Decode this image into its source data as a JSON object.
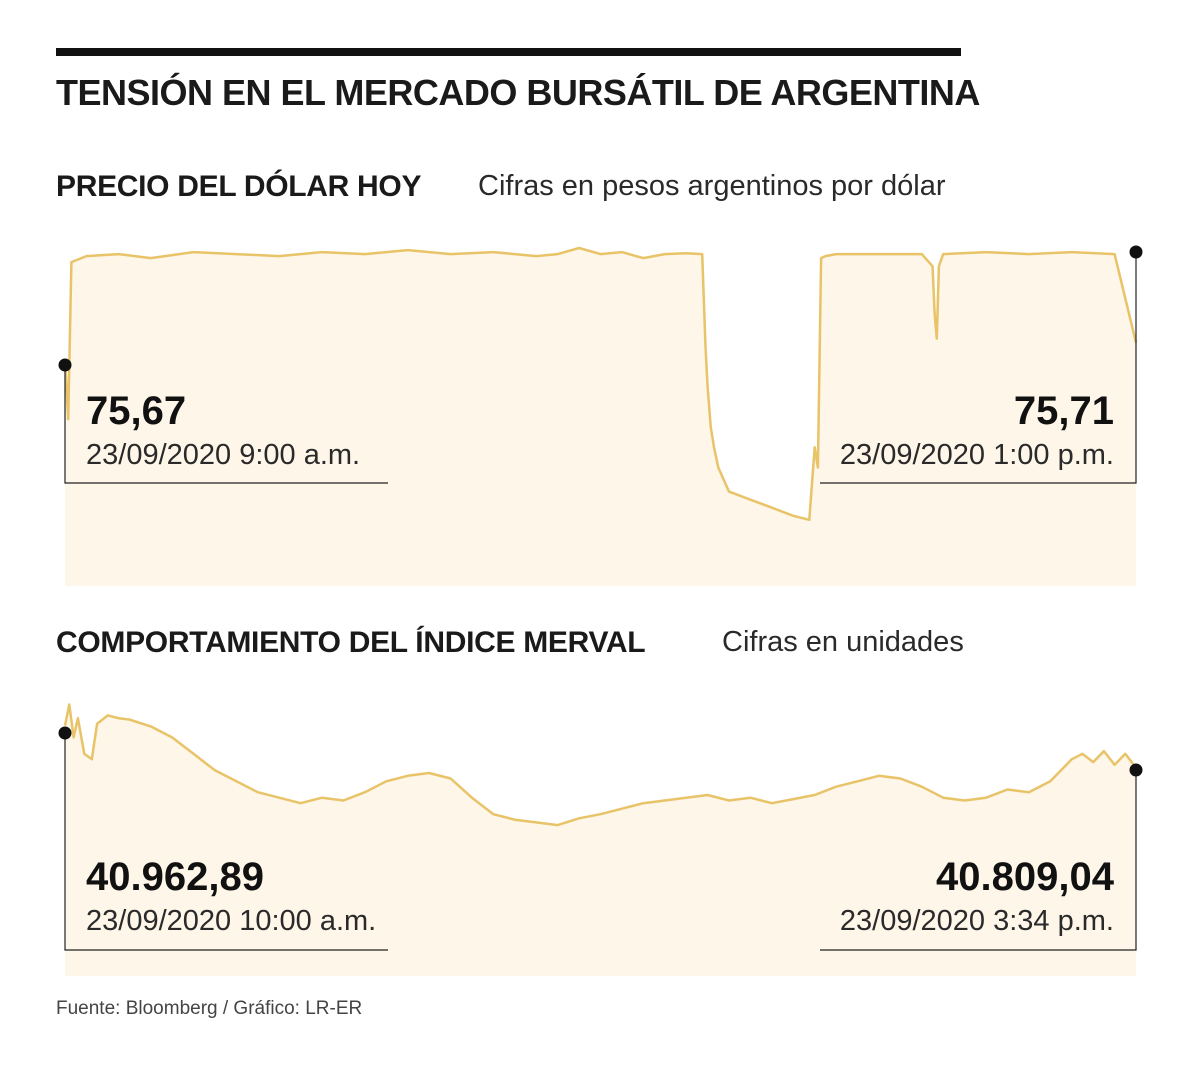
{
  "title": "TENSIÓN EN EL MERCADO BURSÁTIL DE ARGENTINA",
  "source": "Fuente: Bloomberg / Gráfico: LR-ER",
  "colors": {
    "line": "#e8c368",
    "fill": "#fdf6e9",
    "ink": "#111111"
  },
  "chart_data": [
    {
      "type": "area",
      "title": "PRECIO DEL DÓLAR HOY",
      "subtitle": "Cifras en pesos argentinos por dólar",
      "start": {
        "value": "75,67",
        "label": "23/09/2020 9:00 a.m."
      },
      "end": {
        "value": "75,71",
        "label": "23/09/2020 1:00 p.m."
      },
      "xlim": [
        0,
        100
      ],
      "ylim": [
        75.2,
        75.96
      ],
      "x": [
        0,
        0.3,
        0.6,
        2,
        5,
        8,
        12,
        16,
        20,
        24,
        28,
        32,
        36,
        40,
        44,
        46,
        48,
        50,
        52,
        54,
        56,
        58,
        59.5,
        59.8,
        60,
        60.3,
        60.6,
        61,
        62,
        64,
        66,
        68,
        69.5,
        70,
        70.3,
        70.6,
        71,
        72,
        76,
        80,
        81,
        81.2,
        81.4,
        81.6,
        82,
        86,
        90,
        94,
        98,
        100
      ],
      "values": [
        75.67,
        75.52,
        75.91,
        75.925,
        75.93,
        75.92,
        75.935,
        75.93,
        75.925,
        75.935,
        75.93,
        75.94,
        75.93,
        75.935,
        75.925,
        75.93,
        75.945,
        75.93,
        75.935,
        75.92,
        75.93,
        75.932,
        75.93,
        75.7,
        75.6,
        75.5,
        75.45,
        75.4,
        75.34,
        75.32,
        75.3,
        75.28,
        75.27,
        75.45,
        75.4,
        75.92,
        75.925,
        75.93,
        75.93,
        75.93,
        75.9,
        75.78,
        75.72,
        75.9,
        75.93,
        75.935,
        75.93,
        75.935,
        75.93,
        75.71
      ]
    },
    {
      "type": "area",
      "title": "COMPORTAMIENTO DEL ÍNDICE MERVAL",
      "subtitle": "Cifras en unidades",
      "start": {
        "value": "40.962,89",
        "label": "23/09/2020 10:00 a.m."
      },
      "end": {
        "value": "40.809,04",
        "label": "23/09/2020 3:34 p.m."
      },
      "xlim": [
        0,
        100
      ],
      "ylim": [
        40400,
        41100
      ],
      "x": [
        0,
        0.4,
        0.8,
        1.2,
        1.8,
        2.5,
        3,
        4,
        5,
        6,
        8,
        10,
        12,
        14,
        16,
        18,
        20,
        22,
        24,
        26,
        28,
        30,
        32,
        34,
        36,
        38,
        40,
        42,
        44,
        46,
        48,
        50,
        52,
        54,
        56,
        58,
        60,
        62,
        64,
        66,
        68,
        70,
        72,
        74,
        76,
        78,
        80,
        82,
        84,
        86,
        88,
        90,
        92,
        94,
        95,
        96,
        97,
        98,
        99,
        100
      ],
      "values": [
        40962.89,
        41040,
        40920,
        40990,
        40860,
        40840,
        40970,
        41000,
        40990,
        40985,
        40960,
        40920,
        40860,
        40800,
        40760,
        40720,
        40700,
        40680,
        40700,
        40690,
        40720,
        40760,
        40780,
        40790,
        40770,
        40700,
        40640,
        40620,
        40610,
        40600,
        40625,
        40640,
        40660,
        40680,
        40690,
        40700,
        40710,
        40690,
        40700,
        40680,
        40695,
        40710,
        40740,
        40760,
        40780,
        40770,
        40740,
        40700,
        40690,
        40700,
        40730,
        40720,
        40760,
        40840,
        40860,
        40830,
        40870,
        40820,
        40860,
        40809.04
      ]
    }
  ]
}
